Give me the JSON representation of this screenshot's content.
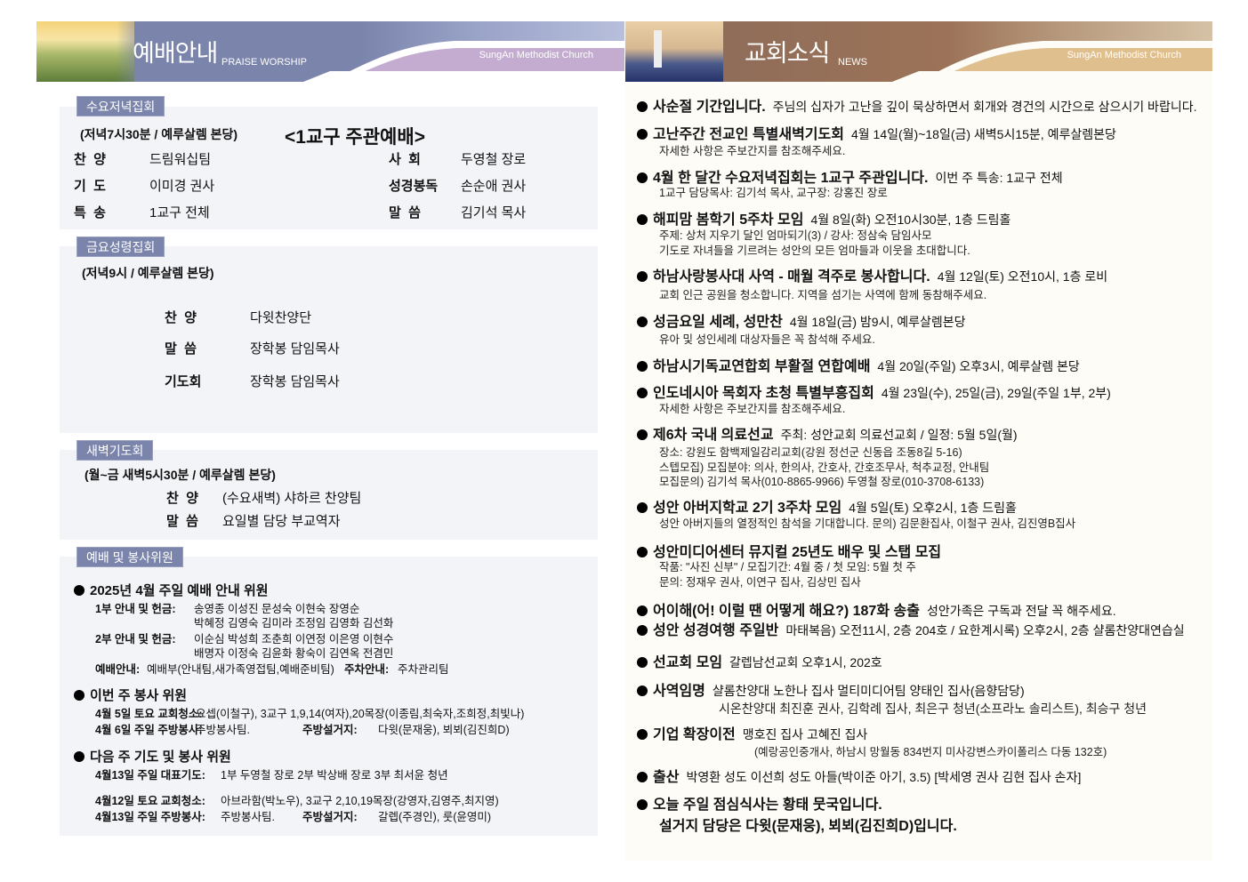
{
  "left_banner": {
    "title": "예배안내",
    "subtitle": "PRAISE WORSHIP",
    "church": "SungAn Methodist Church"
  },
  "right_banner": {
    "title": "교회소식",
    "subtitle": "NEWS",
    "church": "SungAn Methodist Church"
  },
  "colors": {
    "left_banner": "#7b84ab",
    "left_accent": "#c3acd0",
    "right_banner": "#9c7358",
    "right_accent": "#e0bf8e",
    "section_bg": "#f3f4f8"
  },
  "wednesday": {
    "tab": "수요저녁집회",
    "time": "(저녁7시30분 / 예루살렘 본당)",
    "headline": "<1교구 주관예배>",
    "rows": [
      {
        "label": "찬  양",
        "value": "드림워십팀",
        "label2": "사  회",
        "value2": "두영철 장로"
      },
      {
        "label": "기  도",
        "value": "이미경 권사",
        "label2": "성경봉독",
        "value2": "손순애 권사"
      },
      {
        "label": "특  송",
        "value": "1교구 전체",
        "label2": "말  씀",
        "value2": "김기석 목사"
      }
    ]
  },
  "friday": {
    "tab": "금요성령집회",
    "time": "(저녁9시 / 예루살렘 본당)",
    "rows": [
      {
        "label": "찬  양",
        "value": "다윗찬양단"
      },
      {
        "label": "말  씀",
        "value": "장학봉 담임목사"
      },
      {
        "label": "기도회",
        "value": "장학봉 담임목사"
      }
    ]
  },
  "dawn": {
    "tab": "새벽기도회",
    "time": "(월~금 새벽5시30분 / 예루살렘 본당)",
    "rows": [
      {
        "label": "찬  양",
        "value": "(수요새벽) 샤하르 찬양팀"
      },
      {
        "label": "말  씀",
        "value": "요일별 담당 부교역자"
      }
    ]
  },
  "servants": {
    "tab": "예배 및 봉사위원",
    "groups": [
      {
        "title": "2025년 4월 주일 예배 안내 위원",
        "lines": [
          {
            "label": "1부 안내 및 헌금:",
            "value": "송영종 이성진 문성숙 이현숙 장영순"
          },
          {
            "label": "",
            "value": "박혜정 김영숙 김미라 조정임 김영화 김선화"
          },
          {
            "label": "2부 안내 및 헌금:",
            "value": "이순심 박성희 조춘희 이연정 이은영 이현수"
          },
          {
            "label": "",
            "value": "배명자 이정숙 김윤화 황숙이 김연옥 전겸민"
          },
          {
            "label": "예배안내:",
            "value": "예배부(안내팀,새가족영접팀,예배준비팀)",
            "label2": "주차안내:",
            "value2": "주차관리팀"
          }
        ]
      },
      {
        "title": "이번 주 봉사 위원",
        "lines": [
          {
            "label": "4월 5일 토요 교회청소:",
            "value": "요셉(이철구), 3교구 1,9,14(여자),20목장(이종림,최숙자,조희정,최빛나)"
          },
          {
            "label": "4월 6일 주일 주방봉사:",
            "value": "주방봉사팀.",
            "label2": "주방설거지:",
            "value2": "다윗(문재웅), 뵈뵈(김진희D)"
          }
        ]
      },
      {
        "title": "다음 주 기도 및 봉사 위원",
        "lines": [
          {
            "label": "4월13일 주일 대표기도:",
            "value": "1부 두영철 장로    2부 박상배 장로    3부 최서윤 청년"
          },
          {
            "label": "4월12일 토요 교회청소:",
            "value": "아브라함(박노우), 3교구 2,10,19목장(강영자,김영주,최지영)"
          },
          {
            "label": "4월13일 주일 주방봉사:",
            "value": "주방봉사팀.",
            "label2": "주방설거지:",
            "value2": "갈렙(주경인), 룻(윤영미)"
          }
        ]
      }
    ]
  },
  "news": {
    "items": [
      {
        "title": "사순절 기간입니다.",
        "detail": "주님의 십자가 고난을 깊이 묵상하면서 회개와 경건의 시간으로 삼으시기 바랍니다.",
        "sub": []
      },
      {
        "title": "고난주간 전교인 특별새벽기도회",
        "detail": "4월 14일(월)~18일(금) 새벽5시15분, 예루살렘본당",
        "sub": [
          "자세한 사항은 주보간지를 참조해주세요."
        ]
      },
      {
        "title": "4월 한 달간 수요저녁집회는 1교구 주관입니다.",
        "detail": "이번 주 특송: 1교구 전체",
        "sub": [
          "1교구 담당목사: 김기석 목사, 교구장: 강홍진 장로"
        ]
      },
      {
        "title": "해피맘 봄학기 5주차 모임",
        "detail": "4월 8일(화) 오전10시30분, 1층 드림홀",
        "sub": [
          "주제: 상처 지우기 달인 엄마되기(3)   /   강사: 정삼숙 담임사모",
          "기도로 자녀들을 기르려는 성안의 모든 엄마들과 이웃을 초대합니다."
        ]
      },
      {
        "title": "하남사랑봉사대 사역 - 매월 격주로 봉사합니다.",
        "detail": "4월 12일(토) 오전10시, 1층 로비",
        "sub": [
          "교회 인근 공원을 청소합니다. 지역을 섬기는 사역에 함께 동참해주세요."
        ]
      },
      {
        "title": "성금요일 세례, 성만찬",
        "detail": "4월 18일(금) 밤9시, 예루살렘본당",
        "sub": [
          "유아 및 성인세례 대상자들은 꼭 참석해 주세요."
        ]
      },
      {
        "title": "하남시기독교연합회 부활절 연합예배",
        "detail": "4월 20일(주일) 오후3시, 예루살렘 본당",
        "sub": []
      },
      {
        "title": "인도네시아 목회자 초청 특별부흥집회",
        "detail": "4월 23일(수), 25일(금), 29일(주일 1부, 2부)",
        "sub": [
          "자세한 사항은 주보간지를 참조해주세요."
        ]
      },
      {
        "title": "제6차 국내 의료선교",
        "detail": "주최: 성안교회 의료선교회 / 일정: 5월 5일(월)",
        "sub": [
          "장소: 강원도 함백제일감리교회(강원 정선군 신동읍 조동8길 5-16)",
          "스텝모집) 모집분야: 의사, 한의사, 간호사, 간호조무사, 척추교정, 안내팀",
          "모집문의) 김기석 목사(010-8865-9966)    두영철 장로(010-3708-6133)"
        ]
      },
      {
        "title": "성안 아버지학교 2기 3주차 모임",
        "detail": "4월 5일(토) 오후2시, 1층 드림홀",
        "sub": [
          "성안 아버지들의 열정적인 참석을 기대합니다.  문의) 김문환집사, 이철구 권사, 김진영B집사"
        ]
      },
      {
        "title": "성안미디어센터 뮤지컬 25년도 배우 및 스탭 모집",
        "detail": "",
        "sub": [
          "작품: \"사진 신부\" / 모집기간: 4월 중 / 첫 모임: 5월 첫 주",
          "문의: 정재우 권사, 이연구 집사, 김상민 집사"
        ]
      },
      {
        "title": "어이해(어! 이럴 땐 어떻게 해요?) 187화 송출",
        "detail": "성안가족은 구독과 전달 꼭 해주세요.",
        "sub": []
      },
      {
        "title": "성안 성경여행 주일반",
        "detail": "마태복음) 오전11시, 2층 204호 / 요한계시록) 오후2시, 2층 샬롬찬양대연습실",
        "sub": []
      },
      {
        "title": "선교회 모임",
        "detail": "갈렙남선교회 오후1시, 202호",
        "sub": []
      },
      {
        "title": "사역임명",
        "detail": "샬롬찬양대 노한나 집사          멀티미디어팀 양태인 집사(음향담당)",
        "sub": [
          "시온찬양대 최진훈 권사, 김학례 집사, 최은구 청년(소프라노 솔리스트), 최승구 청년"
        ]
      },
      {
        "title": "기업 확장이전",
        "detail": "맹호진 집사 고혜진 집사",
        "sub": [
          "(예랑공인중개사, 하남시 망월동 834번지 미사강변스카이폴리스 다동 132호)"
        ]
      },
      {
        "title": "출산",
        "detail": "박영환 성도 이선희 성도 아들(박이준 아기, 3.5) [박세영 권사 김현 집사 손자]",
        "sub": []
      },
      {
        "title": "오늘 주일 점심식사는 황태 뭇국입니다.",
        "detail": "",
        "sub": [
          "설거지 담당은 다윗(문재웅), 뵈뵈(김진희D)입니다."
        ]
      }
    ]
  }
}
